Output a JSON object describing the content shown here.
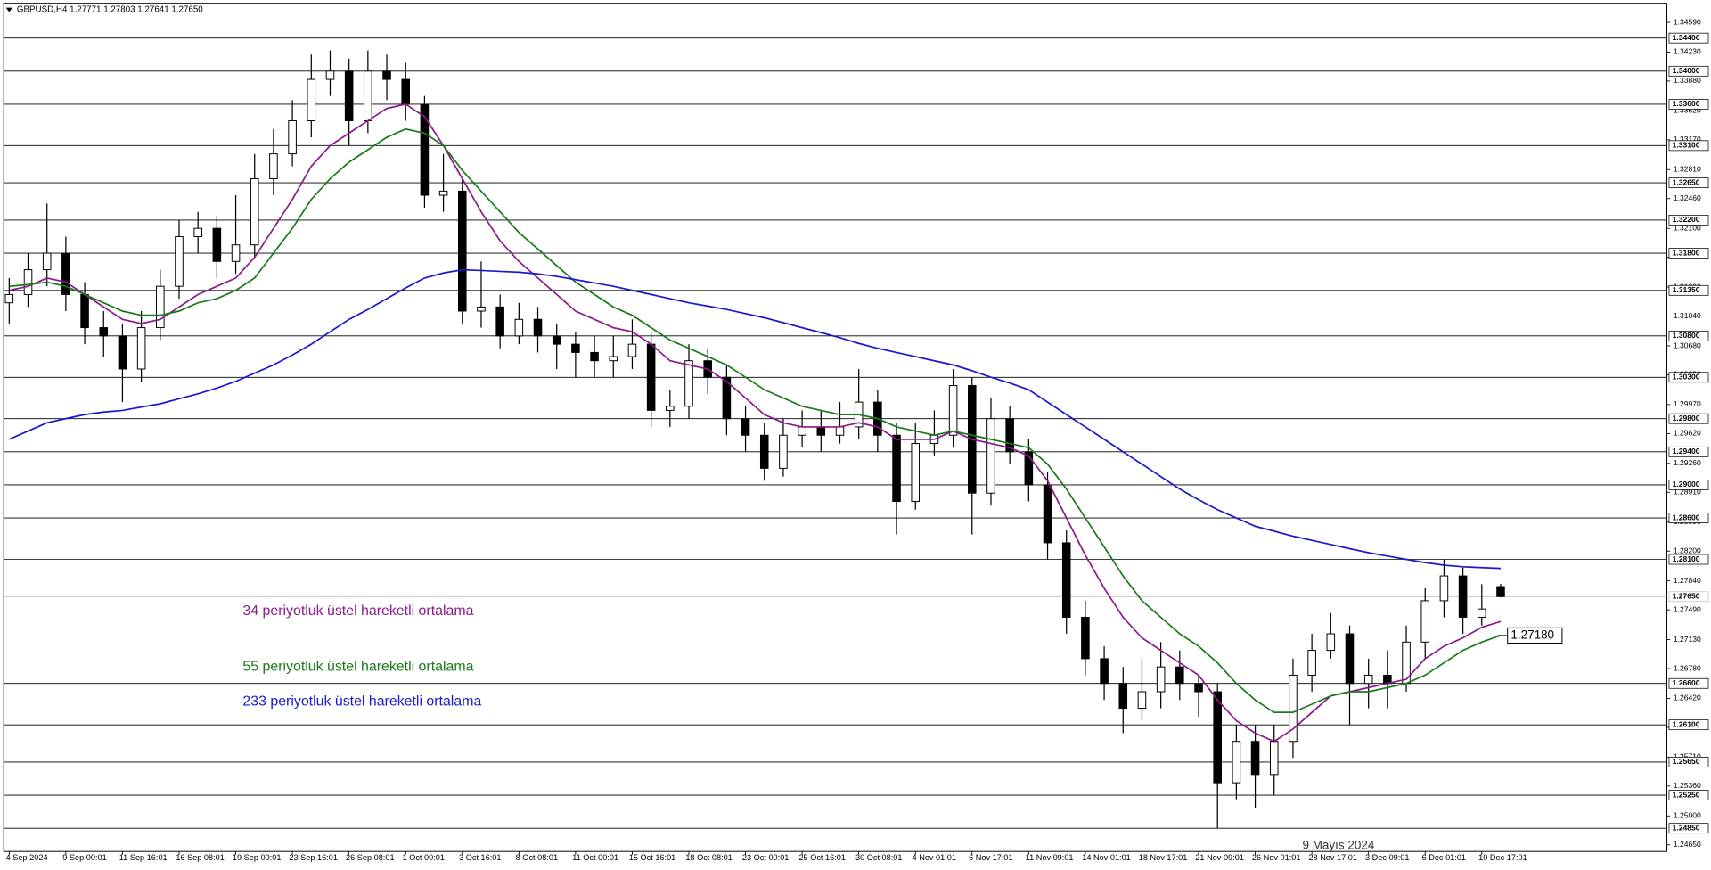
{
  "chart_data": {
    "type": "candlestick",
    "header": "GBPUSD,H4  1.27771 1.27803 1.27641 1.27650",
    "categories": [
      "4 Sep 2024",
      null,
      null,
      "9 Sep 00:01",
      null,
      null,
      "11 Sep 16:01",
      null,
      null,
      "16 Sep 08:01",
      null,
      null,
      "19 Sep 00:01",
      null,
      null,
      "23 Sep 16:01",
      null,
      null,
      "26 Sep 08:01",
      null,
      null,
      "1 Oct 00:01",
      null,
      null,
      "3 Oct 16:01",
      null,
      null,
      "8 Oct 08:01",
      null,
      null,
      "11 Oct 00:01",
      null,
      null,
      "15 Oct 16:01",
      null,
      null,
      "18 Oct 08:01",
      null,
      null,
      "23 Oct 00:01",
      null,
      null,
      "25 Oct 16:01",
      null,
      null,
      "30 Oct 08:01",
      null,
      null,
      "4 Nov 01:01",
      null,
      null,
      "6 Nov 17:01",
      null,
      null,
      "11 Nov 09:01",
      null,
      null,
      "14 Nov 01:01",
      null,
      null,
      "18 Nov 17:01",
      null,
      null,
      "21 Nov 09:01",
      null,
      null,
      "26 Nov 01:01",
      null,
      null,
      "28 Nov 17:01",
      null,
      null,
      "3 Dec 09:01",
      null,
      null,
      "6 Dec 01:01",
      null,
      null,
      "10 Dec 17:01",
      null
    ],
    "open": [
      1.312,
      1.313,
      1.316,
      1.318,
      1.313,
      1.309,
      1.308,
      1.304,
      1.309,
      1.314,
      1.32,
      1.321,
      1.317,
      1.319,
      1.327,
      1.33,
      1.334,
      1.339,
      1.34,
      1.334,
      1.34,
      1.339,
      1.336,
      1.325,
      1.3255,
      1.311,
      1.3115,
      1.308,
      1.31,
      1.308,
      1.307,
      1.306,
      1.305,
      1.3055,
      1.307,
      1.299,
      1.2995,
      1.305,
      1.303,
      1.298,
      1.296,
      1.292,
      1.296,
      1.297,
      1.296,
      1.297,
      1.3,
      1.296,
      1.288,
      1.295,
      1.296,
      1.302,
      1.289,
      1.298,
      1.294,
      1.29,
      1.283,
      1.274,
      1.269,
      1.266,
      1.263,
      1.265,
      1.268,
      1.266,
      1.265,
      1.254,
      1.259,
      1.255,
      1.259,
      1.267,
      1.27,
      1.272,
      1.266,
      1.267,
      1.266,
      1.271,
      1.276,
      1.279,
      1.274,
      1.27771
    ],
    "high": [
      1.315,
      1.318,
      1.324,
      1.32,
      1.3145,
      1.311,
      1.3095,
      1.311,
      1.316,
      1.322,
      1.323,
      1.3225,
      1.325,
      1.33,
      1.333,
      1.3365,
      1.342,
      1.3425,
      1.3415,
      1.3425,
      1.342,
      1.341,
      1.337,
      1.33,
      1.327,
      1.317,
      1.313,
      1.312,
      1.3115,
      1.3095,
      1.3085,
      1.308,
      1.308,
      1.31,
      1.3085,
      1.3015,
      1.307,
      1.3065,
      1.3045,
      1.2995,
      1.2975,
      1.298,
      1.299,
      1.299,
      1.3,
      1.304,
      1.3015,
      1.2975,
      1.2975,
      1.299,
      1.304,
      1.303,
      1.3005,
      1.2995,
      1.2955,
      1.2915,
      1.2845,
      1.276,
      1.2705,
      1.268,
      1.269,
      1.271,
      1.27,
      1.267,
      1.266,
      1.261,
      1.261,
      1.261,
      1.269,
      1.272,
      1.2745,
      1.273,
      1.269,
      1.27,
      1.273,
      1.2775,
      1.281,
      1.28,
      1.278,
      1.27803
    ],
    "low": [
      1.3095,
      1.3115,
      1.314,
      1.311,
      1.307,
      1.3055,
      1.3,
      1.3025,
      1.3075,
      1.3125,
      1.318,
      1.315,
      1.3155,
      1.3175,
      1.325,
      1.3285,
      1.332,
      1.337,
      1.331,
      1.3325,
      1.3365,
      1.334,
      1.3235,
      1.323,
      1.3095,
      1.309,
      1.3065,
      1.307,
      1.306,
      1.304,
      1.303,
      1.303,
      1.303,
      1.304,
      1.297,
      1.297,
      1.298,
      1.301,
      1.296,
      1.294,
      1.2905,
      1.291,
      1.2945,
      1.294,
      1.295,
      1.2955,
      1.294,
      1.284,
      1.287,
      1.2935,
      1.2945,
      1.284,
      1.2875,
      1.2925,
      1.288,
      1.281,
      1.272,
      1.267,
      1.264,
      1.26,
      1.2615,
      1.263,
      1.264,
      1.262,
      1.2485,
      1.252,
      1.251,
      1.2525,
      1.257,
      1.265,
      1.269,
      1.261,
      1.263,
      1.263,
      1.265,
      1.269,
      1.274,
      1.272,
      1.273,
      1.27641
    ],
    "close": [
      1.313,
      1.316,
      1.318,
      1.313,
      1.309,
      1.308,
      1.304,
      1.309,
      1.314,
      1.32,
      1.321,
      1.317,
      1.319,
      1.327,
      1.33,
      1.334,
      1.339,
      1.34,
      1.334,
      1.34,
      1.339,
      1.336,
      1.325,
      1.3255,
      1.311,
      1.3115,
      1.308,
      1.31,
      1.308,
      1.307,
      1.306,
      1.305,
      1.3055,
      1.307,
      1.299,
      1.2995,
      1.305,
      1.303,
      1.298,
      1.296,
      1.292,
      1.296,
      1.297,
      1.296,
      1.297,
      1.3,
      1.296,
      1.288,
      1.295,
      1.296,
      1.302,
      1.289,
      1.298,
      1.294,
      1.29,
      1.283,
      1.274,
      1.269,
      1.266,
      1.263,
      1.265,
      1.268,
      1.266,
      1.265,
      1.254,
      1.259,
      1.255,
      1.259,
      1.267,
      1.27,
      1.272,
      1.266,
      1.267,
      1.266,
      1.271,
      1.276,
      1.279,
      1.274,
      1.275,
      1.2765
    ],
    "series": [
      {
        "name": "34 periyotluk üstel hareketli ortalama",
        "color": "#8b1a8b",
        "values": [
          1.3135,
          1.314,
          1.315,
          1.3145,
          1.313,
          1.3115,
          1.31,
          1.3095,
          1.31,
          1.3115,
          1.313,
          1.314,
          1.315,
          1.3175,
          1.321,
          1.3245,
          1.3285,
          1.331,
          1.3325,
          1.334,
          1.3355,
          1.336,
          1.3345,
          1.331,
          1.327,
          1.323,
          1.3195,
          1.317,
          1.315,
          1.313,
          1.311,
          1.31,
          1.309,
          1.3085,
          1.307,
          1.305,
          1.3045,
          1.304,
          1.3025,
          1.3005,
          1.2985,
          1.2975,
          1.297,
          1.297,
          1.297,
          1.2975,
          1.297,
          1.2955,
          1.2955,
          1.2955,
          1.2965,
          1.2955,
          1.295,
          1.2945,
          1.2935,
          1.2905,
          1.286,
          1.2815,
          1.2775,
          1.274,
          1.2715,
          1.27,
          1.2685,
          1.267,
          1.264,
          1.2615,
          1.26,
          1.259,
          1.2605,
          1.2625,
          1.2645,
          1.265,
          1.2655,
          1.266,
          1.2665,
          1.269,
          1.2705,
          1.2715,
          1.2728,
          1.2735
        ]
      },
      {
        "name": "55 periyotluk üstel hareketli ortalama",
        "color": "#1a7a1a",
        "values": [
          1.314,
          1.3142,
          1.3145,
          1.314,
          1.313,
          1.312,
          1.311,
          1.3105,
          1.3105,
          1.311,
          1.312,
          1.3125,
          1.3135,
          1.315,
          1.318,
          1.321,
          1.3245,
          1.327,
          1.329,
          1.3305,
          1.332,
          1.333,
          1.3325,
          1.331,
          1.328,
          1.3255,
          1.323,
          1.3205,
          1.3185,
          1.3165,
          1.3145,
          1.313,
          1.3115,
          1.3105,
          1.309,
          1.3075,
          1.3065,
          1.3055,
          1.3045,
          1.303,
          1.3015,
          1.3005,
          1.2995,
          1.299,
          1.2985,
          1.2985,
          1.298,
          1.297,
          1.2965,
          1.296,
          1.2965,
          1.296,
          1.2955,
          1.295,
          1.2945,
          1.2925,
          1.2895,
          1.286,
          1.2825,
          1.279,
          1.276,
          1.274,
          1.272,
          1.2705,
          1.2685,
          1.266,
          1.264,
          1.2625,
          1.2625,
          1.2635,
          1.2645,
          1.265,
          1.265,
          1.2655,
          1.266,
          1.267,
          1.2685,
          1.27,
          1.271,
          1.2718
        ]
      },
      {
        "name": "233 periyotluk üstel hareketli ortalama",
        "color": "#1a1acc",
        "values": [
          1.2955,
          1.2965,
          1.2975,
          1.298,
          1.2985,
          1.2988,
          1.299,
          1.2994,
          1.2998,
          1.3004,
          1.301,
          1.3017,
          1.3025,
          1.3035,
          1.3045,
          1.3057,
          1.307,
          1.3085,
          1.31,
          1.3112,
          1.3125,
          1.3138,
          1.315,
          1.3156,
          1.316,
          1.3159,
          1.3158,
          1.3157,
          1.3155,
          1.3152,
          1.3148,
          1.3144,
          1.314,
          1.3135,
          1.313,
          1.3125,
          1.312,
          1.3116,
          1.3112,
          1.3107,
          1.3102,
          1.3096,
          1.309,
          1.3084,
          1.3078,
          1.3071,
          1.3065,
          1.306,
          1.3055,
          1.305,
          1.3045,
          1.3038,
          1.303,
          1.3023,
          1.3015,
          1.3,
          1.2985,
          1.297,
          1.2955,
          1.294,
          1.2925,
          1.291,
          1.2895,
          1.2882,
          1.287,
          1.286,
          1.285,
          1.2844,
          1.2838,
          1.2833,
          1.2828,
          1.2823,
          1.2818,
          1.2814,
          1.281,
          1.2806,
          1.2803,
          1.2801,
          1.28,
          1.2799
        ]
      }
    ],
    "ylim": [
      1.2457,
      1.3482
    ],
    "yticks": [
      {
        "value": 1.2465,
        "label": "1.24650"
      },
      {
        "value": 1.25,
        "label": "1.25000"
      },
      {
        "value": 1.2536,
        "label": "1.25360"
      },
      {
        "value": 1.2571,
        "label": "1.25710"
      },
      {
        "value": 1.2607,
        "label": "1.26070"
      },
      {
        "value": 1.2642,
        "label": "1.26420"
      },
      {
        "value": 1.2678,
        "label": "1.26780"
      },
      {
        "value": 1.2713,
        "label": "1.27130"
      },
      {
        "value": 1.2749,
        "label": "1.27490"
      },
      {
        "value": 1.2784,
        "label": "1.27840"
      },
      {
        "value": 1.282,
        "label": "1.28200"
      },
      {
        "value": 1.2855,
        "label": "1.28550"
      },
      {
        "value": 1.2891,
        "label": "1.28910"
      },
      {
        "value": 1.2926,
        "label": "1.29260"
      },
      {
        "value": 1.2962,
        "label": "1.29620"
      },
      {
        "value": 1.2997,
        "label": "1.29970"
      },
      {
        "value": 1.3033,
        "label": "1.30330"
      },
      {
        "value": 1.3068,
        "label": "1.30680"
      },
      {
        "value": 1.3104,
        "label": "1.31040"
      },
      {
        "value": 1.3139,
        "label": "1.31390"
      },
      {
        "value": 1.3175,
        "label": "1.31750"
      },
      {
        "value": 1.321,
        "label": "1.32100"
      },
      {
        "value": 1.3246,
        "label": "1.32460"
      },
      {
        "value": 1.3281,
        "label": "1.32810"
      },
      {
        "value": 1.3317,
        "label": "1.33170"
      },
      {
        "value": 1.3352,
        "label": "1.33520"
      },
      {
        "value": 1.3388,
        "label": "1.33880"
      },
      {
        "value": 1.3423,
        "label": "1.34230"
      },
      {
        "value": 1.3459,
        "label": "1.34590"
      }
    ],
    "levels": [
      {
        "value": 1.344,
        "label": "1.34400"
      },
      {
        "value": 1.34,
        "label": "1.34000"
      },
      {
        "value": 1.336,
        "label": "1.33600"
      },
      {
        "value": 1.331,
        "label": "1.33100"
      },
      {
        "value": 1.3265,
        "label": "1.32650"
      },
      {
        "value": 1.322,
        "label": "1.32200"
      },
      {
        "value": 1.318,
        "label": "1.31800"
      },
      {
        "value": 1.3135,
        "label": "1.31350"
      },
      {
        "value": 1.308,
        "label": "1.30800"
      },
      {
        "value": 1.303,
        "label": "1.30300"
      },
      {
        "value": 1.298,
        "label": "1.29800"
      },
      {
        "value": 1.294,
        "label": "1.29400"
      },
      {
        "value": 1.29,
        "label": "1.29000"
      },
      {
        "value": 1.286,
        "label": "1.28600"
      },
      {
        "value": 1.281,
        "label": "1.28100"
      },
      {
        "value": 1.266,
        "label": "1.26600"
      },
      {
        "value": 1.261,
        "label": "1.26100"
      },
      {
        "value": 1.2565,
        "label": "1.25650"
      },
      {
        "value": 1.2525,
        "label": "1.25250"
      },
      {
        "value": 1.2485,
        "label": "1.24850"
      }
    ],
    "current_price": {
      "value": 1.2765,
      "label": "1.27650"
    },
    "price_label": {
      "value": 1.2718,
      "label": "1.27180"
    },
    "annotation": "9 Mayıs 2024",
    "grid": false
  }
}
